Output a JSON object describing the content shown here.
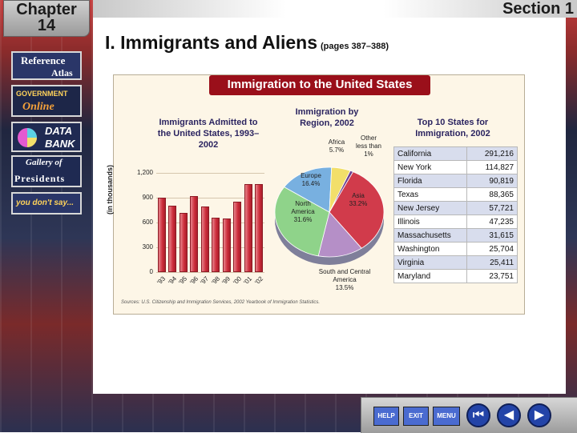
{
  "chapter": {
    "label": "Chapter",
    "number": "14"
  },
  "section": {
    "label": "Section 1"
  },
  "sidebar": {
    "reference_atlas": {
      "line1": "Reference",
      "line2": "Atlas"
    },
    "government_online": {
      "line1": "GOVERNMENT",
      "line2": "Online"
    },
    "data_bank": {
      "line1": "DATA",
      "line2": "BANK"
    },
    "gallery_of_presidents": {
      "line1": "Gallery of",
      "line2": "Presidents"
    },
    "you_dont_say": {
      "label": "you don't say..."
    }
  },
  "page": {
    "title": "I.  Immigrants and Aliens",
    "pages": "(pages 387–388)"
  },
  "figure": {
    "title": "Immigration to the United States",
    "source": "Sources: U.S. Citizenship and Immigration Services, 2002 Yearbook of Immigration Statistics."
  },
  "chart_data": [
    {
      "type": "bar",
      "title": "Immigrants Admitted to the United States, 1993–2002",
      "ylabel": "(in thousands)",
      "yticks": [
        "0",
        "300",
        "600",
        "900",
        "1,200"
      ],
      "ylim": [
        0,
        1200
      ],
      "categories": [
        "'93",
        "'94",
        "'95",
        "'96",
        "'97",
        "'98",
        "'99",
        "'00",
        "'01",
        "'02"
      ],
      "values": [
        904,
        804,
        720,
        916,
        798,
        654,
        646,
        850,
        1064,
        1064
      ]
    },
    {
      "type": "pie",
      "title": "Immigration by Region, 2002",
      "slices": [
        {
          "name": "Asia",
          "label": "Asia\n33.2%",
          "value": 33.2,
          "color": "#d13b4b"
        },
        {
          "name": "South and Central America",
          "label": "South and Central\nAmerica\n13.5%",
          "value": 13.5,
          "color": "#b58fc7"
        },
        {
          "name": "North America",
          "label": "North\nAmerica\n31.6%",
          "value": 31.6,
          "color": "#8fd38a"
        },
        {
          "name": "Europe",
          "label": "Europe\n16.4%",
          "value": 16.4,
          "color": "#78b0e0"
        },
        {
          "name": "Africa",
          "label": "Africa\n5.7%",
          "value": 5.7,
          "color": "#f2df6a"
        },
        {
          "name": "Other less than 1%",
          "label": "Other\nless than 1%",
          "value": 0.9,
          "color": "#6a3f8f"
        }
      ]
    },
    {
      "type": "table",
      "title": "Top 10 States for Immigration, 2002",
      "rows": [
        {
          "state": "California",
          "value": "291,216"
        },
        {
          "state": "New York",
          "value": "114,827"
        },
        {
          "state": "Florida",
          "value": "90,819"
        },
        {
          "state": "Texas",
          "value": "88,365"
        },
        {
          "state": "New Jersey",
          "value": "57,721"
        },
        {
          "state": "Illinois",
          "value": "47,235"
        },
        {
          "state": "Massachusetts",
          "value": "31,615"
        },
        {
          "state": "Washington",
          "value": "25,704"
        },
        {
          "state": "Virginia",
          "value": "25,411"
        },
        {
          "state": "Maryland",
          "value": "23,751"
        }
      ]
    }
  ],
  "nav": {
    "help": "HELP",
    "exit": "EXIT",
    "menu": "MENU"
  }
}
